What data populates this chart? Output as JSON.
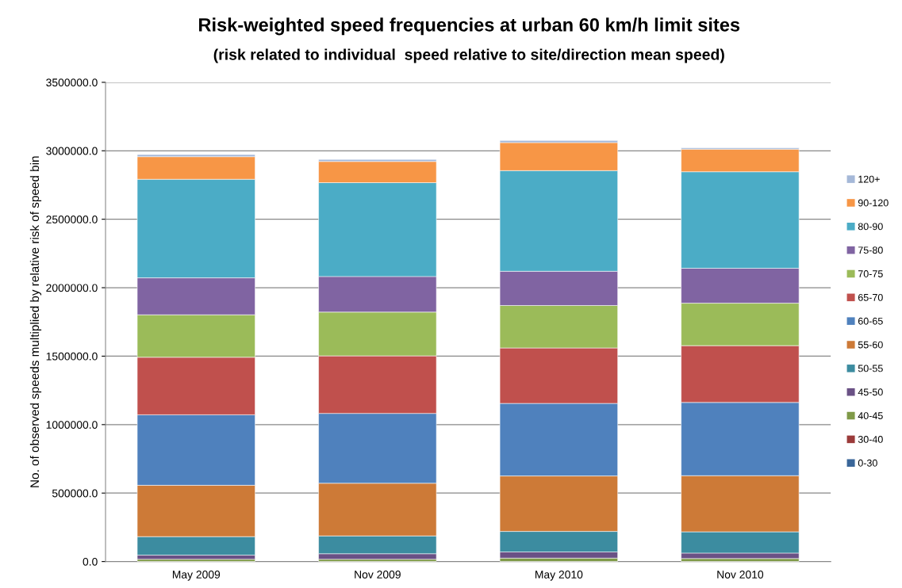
{
  "chart_data": {
    "type": "bar",
    "stacked": true,
    "title": "Risk-weighted speed frequencies at urban 60 km/h limit sites",
    "subtitle": "(risk related to individual  speed relative to site/direction mean speed)",
    "ylabel": "No. of observed speeds multiplied by relative risk of speed bin",
    "categories": [
      "May 2009",
      "Nov 2009",
      "May 2010",
      "Nov 2010"
    ],
    "series": [
      {
        "name": "0-30",
        "color": "#3a6699",
        "values": [
          null,
          null,
          null,
          null
        ]
      },
      {
        "name": "30-40",
        "color": "#9b3b3a",
        "values": [
          null,
          null,
          null,
          null
        ]
      },
      {
        "name": "40-45",
        "color": "#7f9a48",
        "values": [
          17000,
          17000,
          25000,
          22000
        ]
      },
      {
        "name": "45-50",
        "color": "#6a5185",
        "values": [
          30000,
          40000,
          45000,
          40000
        ]
      },
      {
        "name": "50-55",
        "color": "#3c8ca0",
        "values": [
          135000,
          130000,
          150000,
          155000
        ]
      },
      {
        "name": "55-60",
        "color": "#cd7a37",
        "values": [
          375000,
          385000,
          405000,
          410000
        ]
      },
      {
        "name": "60-65",
        "color": "#4f81bd",
        "values": [
          515000,
          510000,
          530000,
          535000
        ]
      },
      {
        "name": "65-70",
        "color": "#c0504d",
        "values": [
          420000,
          420000,
          405000,
          415000
        ]
      },
      {
        "name": "70-75",
        "color": "#9bbb59",
        "values": [
          310000,
          320000,
          310000,
          310000
        ]
      },
      {
        "name": "75-80",
        "color": "#8064a2",
        "values": [
          270000,
          260000,
          250000,
          255000
        ]
      },
      {
        "name": "80-90",
        "color": "#4bacc6",
        "values": [
          720000,
          685000,
          735000,
          705000
        ]
      },
      {
        "name": "90-120",
        "color": "#f79646",
        "values": [
          165000,
          155000,
          205000,
          165000
        ]
      },
      {
        "name": "120+",
        "color": "#a5b8d8",
        "values": [
          15000,
          15000,
          15000,
          10000
        ]
      }
    ],
    "ylim": [
      0,
      3500000
    ],
    "yticks": [
      {
        "value": 0,
        "label": "0.0"
      },
      {
        "value": 500000,
        "label": "500000.0"
      },
      {
        "value": 1000000,
        "label": "1000000.0"
      },
      {
        "value": 1500000,
        "label": "1500000.0"
      },
      {
        "value": 2000000,
        "label": "2000000.0"
      },
      {
        "value": 2500000,
        "label": "2500000.0"
      },
      {
        "value": 3000000,
        "label": "3000000.0"
      },
      {
        "value": 3500000,
        "label": "3500000.0"
      }
    ],
    "grid": "y",
    "legend": "right"
  }
}
